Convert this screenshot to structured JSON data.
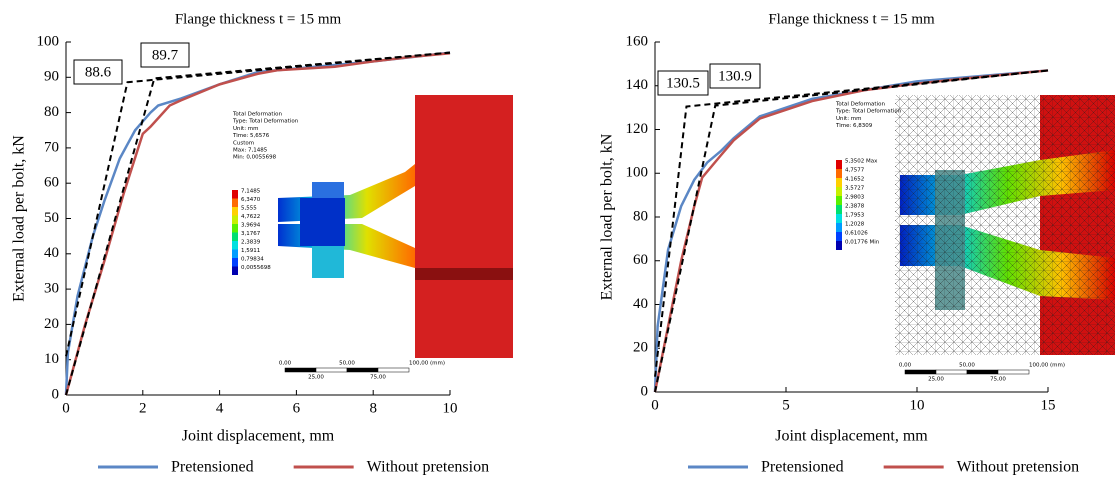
{
  "chart_data": [
    {
      "type": "line",
      "title": "Flange thickness t = 15 mm",
      "xlabel": "Joint displacement, mm",
      "ylabel": "External load per bolt, kN",
      "xlim": [
        0,
        10
      ],
      "ylim": [
        0,
        100
      ],
      "xticks": [
        0,
        2,
        4,
        6,
        8,
        10
      ],
      "yticks": [
        0,
        10,
        20,
        30,
        40,
        50,
        60,
        70,
        80,
        90,
        100
      ],
      "series": [
        {
          "name": "Pretensioned",
          "color": "#5b87c5",
          "x": [
            0,
            0.05,
            0.3,
            0.7,
            1.0,
            1.4,
            1.8,
            2.2,
            2.4,
            3,
            4,
            5,
            6,
            7,
            8,
            9,
            10
          ],
          "values": [
            0,
            12,
            28,
            45,
            55,
            67,
            75,
            80,
            82,
            84,
            88,
            91.5,
            92.5,
            93.5,
            94.5,
            95.7,
            97
          ]
        },
        {
          "name": "Without pretension",
          "color": "#c0504d",
          "x": [
            0,
            0.5,
            1,
            1.5,
            2,
            2.2,
            2.7,
            3,
            4,
            5,
            5.5,
            7,
            8,
            9,
            10
          ],
          "values": [
            0,
            20,
            38,
            57,
            74,
            76,
            82,
            83.5,
            88,
            91,
            92,
            93,
            94.5,
            95.8,
            96.8
          ]
        },
        {
          "color": "#000000",
          "dash": true,
          "x": [
            0,
            1.6,
            10
          ],
          "values": [
            11,
            88.6,
            97
          ]
        },
        {
          "color": "#000000",
          "dash": true,
          "x": [
            0,
            2.3,
            10
          ],
          "values": [
            0,
            89.7,
            97
          ]
        }
      ],
      "annotations": [
        "88.6",
        "89.7"
      ],
      "inset": {
        "info": [
          "Total Deformation",
          "Type: Total Deformation",
          "Unit: mm",
          "Time: 5,6576",
          "Custom",
          "Max: 7,1485",
          "Min: 0,0055698"
        ],
        "legend": [
          {
            "label": "7,1485",
            "color": "#e00000"
          },
          {
            "label": "6,3470",
            "color": "#ff6a00"
          },
          {
            "label": "5,555",
            "color": "#ffd000"
          },
          {
            "label": "4,7622",
            "color": "#c8f000"
          },
          {
            "label": "3,9694",
            "color": "#5af000"
          },
          {
            "label": "3,1767",
            "color": "#00e070"
          },
          {
            "label": "2,3839",
            "color": "#00e0e0"
          },
          {
            "label": "1,5911",
            "color": "#009cff"
          },
          {
            "label": "0,79834",
            "color": "#0040ff"
          },
          {
            "label": "0,0055698",
            "color": "#0000b0"
          }
        ],
        "scale": [
          "0,00",
          "50,00",
          "100,00 (mm)",
          "25,00",
          "75,00"
        ]
      }
    },
    {
      "type": "line",
      "title": "Flange thickness t = 15 mm",
      "xlabel": "Joint displacement, mm",
      "ylabel": "External load per bolt, kN",
      "xlim": [
        0,
        15
      ],
      "ylim": [
        0,
        160
      ],
      "xticks": [
        0,
        5,
        10,
        15
      ],
      "yticks": [
        0,
        20,
        40,
        60,
        80,
        100,
        120,
        140,
        160
      ],
      "series": [
        {
          "name": "Pretensioned",
          "color": "#5b87c5",
          "x": [
            0,
            0.1,
            0.5,
            1,
            1.5,
            2,
            2.5,
            3,
            4,
            6,
            8,
            10,
            12,
            15
          ],
          "values": [
            0,
            30,
            65,
            85,
            97,
            105,
            110,
            116,
            126,
            134,
            138,
            142,
            144,
            147
          ]
        },
        {
          "name": "Without pretension",
          "color": "#c0504d",
          "x": [
            0,
            0.5,
            1,
            1.5,
            1.8,
            2.5,
            3,
            4,
            6,
            8,
            10,
            12,
            15
          ],
          "values": [
            0,
            30,
            60,
            85,
            98,
            108,
            115,
            125,
            133,
            138,
            141,
            143.5,
            147
          ]
        },
        {
          "color": "#000000",
          "dash": true,
          "x": [
            0,
            1.2,
            15
          ],
          "values": [
            7,
            130.5,
            147
          ]
        },
        {
          "color": "#000000",
          "dash": true,
          "x": [
            0,
            2.3,
            15
          ],
          "values": [
            0,
            130.9,
            147
          ]
        }
      ],
      "annotations": [
        "130.5",
        "130.9"
      ],
      "inset": {
        "info": [
          "Total Deformation",
          "Type: Total Deformation",
          "Unit: mm",
          "Time: 6,8309"
        ],
        "legend": [
          {
            "label": "5,3502 Max",
            "color": "#e00000"
          },
          {
            "label": "4,7577",
            "color": "#ff6a00"
          },
          {
            "label": "4,1652",
            "color": "#ffd000"
          },
          {
            "label": "3,5727",
            "color": "#c8f000"
          },
          {
            "label": "2,9803",
            "color": "#5af000"
          },
          {
            "label": "2,3878",
            "color": "#00e070"
          },
          {
            "label": "1,7953",
            "color": "#00e0e0"
          },
          {
            "label": "1,2028",
            "color": "#009cff"
          },
          {
            "label": "0,61026",
            "color": "#0040ff"
          },
          {
            "label": "0,01776 Min",
            "color": "#0000b0"
          }
        ],
        "scale": [
          "0,00",
          "50,00",
          "100,00 (mm)",
          "25,00",
          "75,00"
        ]
      }
    }
  ]
}
